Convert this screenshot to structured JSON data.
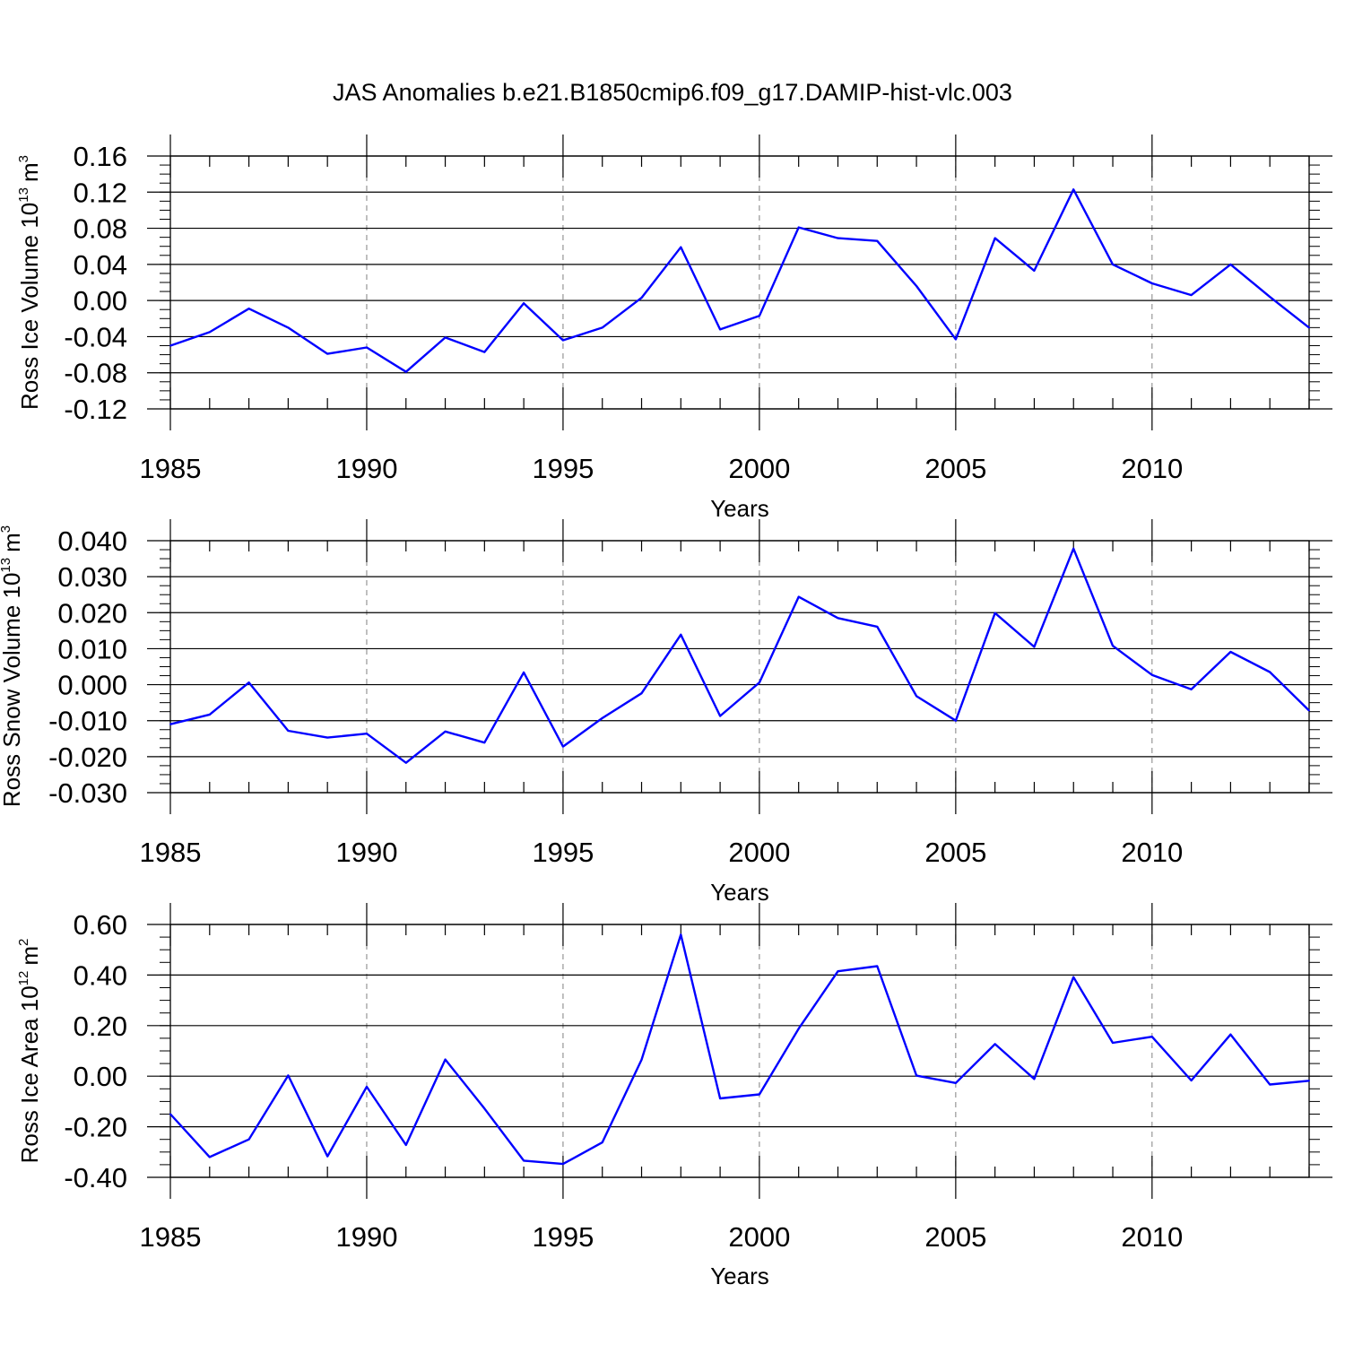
{
  "title": "JAS Anomalies b.e21.B1850cmip6.f09_g17.DAMIP-hist-vlc.003",
  "colors": {
    "line": "#0000ff",
    "axis": "#000000",
    "grid": "#808080",
    "background": "#ffffff"
  },
  "chart_data": [
    {
      "type": "line",
      "xlabel": "Years",
      "ylabel": {
        "text": "Ross Ice Volume 10",
        "sup": "13",
        "unit": "m",
        "unit_sup": "3"
      },
      "xlim": [
        1985,
        2014
      ],
      "ylim": [
        -0.12,
        0.16
      ],
      "xticks": [
        "1985",
        "1990",
        "1995",
        "2000",
        "2005",
        "2010"
      ],
      "yticks": [
        "-0.12",
        "-0.08",
        "-0.04",
        "0.00",
        "0.04",
        "0.08",
        "0.12",
        "0.16"
      ],
      "grid": "vertical dashed at major x ticks",
      "x": [
        1985,
        1986,
        1987,
        1988,
        1989,
        1990,
        1991,
        1992,
        1993,
        1994,
        1995,
        1996,
        1997,
        1998,
        1999,
        2000,
        2001,
        2002,
        2003,
        2004,
        2005,
        2006,
        2007,
        2008,
        2009,
        2010,
        2011,
        2012,
        2013,
        2014
      ],
      "values": [
        -0.05,
        -0.035,
        -0.009,
        -0.03,
        -0.059,
        -0.052,
        -0.079,
        -0.041,
        -0.057,
        -0.003,
        -0.044,
        -0.03,
        0.003,
        0.059,
        -0.032,
        -0.017,
        0.081,
        0.069,
        0.066,
        0.016,
        -0.043,
        0.069,
        0.033,
        0.123,
        0.04,
        0.019,
        0.006,
        0.04,
        0.004,
        -0.03
      ]
    },
    {
      "type": "line",
      "xlabel": "Years",
      "ylabel": {
        "text": "Ross Snow Volume 10",
        "sup": "13",
        "unit": "m",
        "unit_sup": "3"
      },
      "xlim": [
        1985,
        2014
      ],
      "ylim": [
        -0.03,
        0.04
      ],
      "xticks": [
        "1985",
        "1990",
        "1995",
        "2000",
        "2005",
        "2010"
      ],
      "yticks": [
        "-0.030",
        "-0.020",
        "-0.010",
        "0.000",
        "0.010",
        "0.020",
        "0.030",
        "0.040"
      ],
      "grid": "vertical dashed at major x ticks",
      "x": [
        1985,
        1986,
        1987,
        1988,
        1989,
        1990,
        1991,
        1992,
        1993,
        1994,
        1995,
        1996,
        1997,
        1998,
        1999,
        2000,
        2001,
        2002,
        2003,
        2004,
        2005,
        2006,
        2007,
        2008,
        2009,
        2010,
        2011,
        2012,
        2013,
        2014
      ],
      "values": [
        -0.011,
        -0.0083,
        0.0006,
        -0.0128,
        -0.0147,
        -0.0136,
        -0.0217,
        -0.013,
        -0.0161,
        0.0034,
        -0.0172,
        -0.0093,
        -0.0024,
        0.0139,
        -0.0087,
        0.0006,
        0.0244,
        0.0185,
        0.0161,
        -0.0032,
        -0.01,
        0.0199,
        0.0105,
        0.0378,
        0.0108,
        0.0027,
        -0.0013,
        0.0091,
        0.0035,
        -0.0072
      ]
    },
    {
      "type": "line",
      "xlabel": "Years",
      "ylabel": {
        "text": "Ross Ice Area 10",
        "sup": "12",
        "unit": "m",
        "unit_sup": "2"
      },
      "xlim": [
        1985,
        2014
      ],
      "ylim": [
        -0.4,
        0.6
      ],
      "xticks": [
        "1985",
        "1990",
        "1995",
        "2000",
        "2005",
        "2010"
      ],
      "yticks": [
        "-0.40",
        "-0.20",
        "0.00",
        "0.20",
        "0.40",
        "0.60"
      ],
      "grid": "vertical dashed at major x ticks",
      "x": [
        1985,
        1986,
        1987,
        1988,
        1989,
        1990,
        1991,
        1992,
        1993,
        1994,
        1995,
        1996,
        1997,
        1998,
        1999,
        2000,
        2001,
        2002,
        2003,
        2004,
        2005,
        2006,
        2007,
        2008,
        2009,
        2010,
        2011,
        2012,
        2013,
        2014
      ],
      "values": [
        -0.15,
        -0.32,
        -0.25,
        0.003,
        -0.317,
        -0.042,
        -0.272,
        0.066,
        -0.128,
        -0.334,
        -0.347,
        -0.262,
        0.065,
        0.56,
        -0.088,
        -0.072,
        0.188,
        0.415,
        0.435,
        0.002,
        -0.027,
        0.127,
        -0.011,
        0.392,
        0.132,
        0.156,
        -0.017,
        0.165,
        -0.033,
        -0.018
      ]
    }
  ]
}
